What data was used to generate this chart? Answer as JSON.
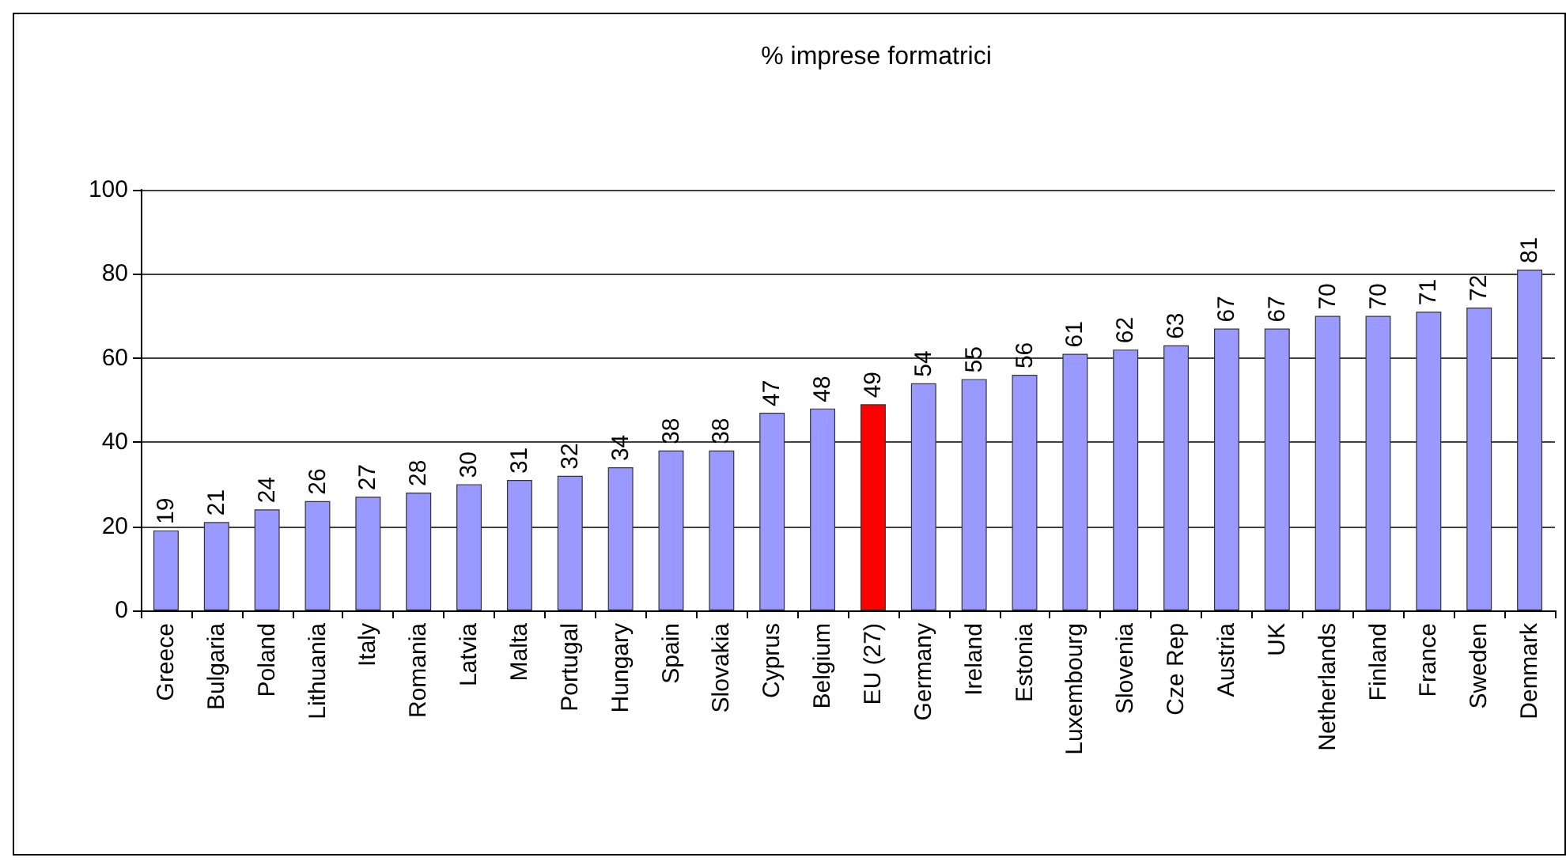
{
  "chart_data": {
    "type": "bar",
    "title": "% imprese formatrici",
    "categories": [
      "Greece",
      "Bulgaria",
      "Poland",
      "Lithuania",
      "Italy",
      "Romania",
      "Latvia",
      "Malta",
      "Portugal",
      "Hungary",
      "Spain",
      "Slovakia",
      "Cyprus",
      "Belgium",
      "EU (27)",
      "Germany",
      "Ireland",
      "Estonia",
      "Luxembourg",
      "Slovenia",
      "Cze Rep",
      "Austria",
      "UK",
      "Netherlands",
      "Finland",
      "France",
      "Sweden",
      "Denmark"
    ],
    "values": [
      19,
      21,
      24,
      26,
      27,
      28,
      30,
      31,
      32,
      34,
      38,
      38,
      47,
      48,
      49,
      54,
      55,
      56,
      61,
      62,
      63,
      67,
      67,
      70,
      70,
      71,
      72,
      81
    ],
    "colors": [
      "#9999ff",
      "#9999ff",
      "#9999ff",
      "#9999ff",
      "#9999ff",
      "#9999ff",
      "#9999ff",
      "#9999ff",
      "#9999ff",
      "#9999ff",
      "#9999ff",
      "#9999ff",
      "#9999ff",
      "#9999ff",
      "#ff0000",
      "#9999ff",
      "#9999ff",
      "#9999ff",
      "#9999ff",
      "#9999ff",
      "#9999ff",
      "#9999ff",
      "#9999ff",
      "#9999ff",
      "#9999ff",
      "#9999ff",
      "#9999ff",
      "#9999ff"
    ],
    "ylim": [
      0,
      100
    ],
    "yticks": [
      0,
      20,
      40,
      60,
      80,
      100
    ],
    "grid": "y",
    "data_labels": true
  }
}
